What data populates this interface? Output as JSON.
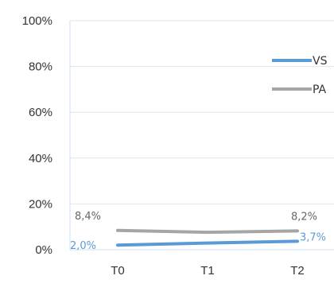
{
  "chart_data": {
    "type": "line",
    "categories": [
      "T0",
      "T1",
      "T2"
    ],
    "ylim": [
      0,
      100
    ],
    "y_ticks": [
      "0%",
      "20%",
      "40%",
      "60%",
      "80%",
      "100%"
    ],
    "grid": true,
    "legend_position": "right",
    "series": [
      {
        "name": "VS",
        "color": "#5b9bd5",
        "values": [
          2.0,
          2.9,
          3.7
        ],
        "labels": [
          "2,0%",
          "",
          "3,7%"
        ]
      },
      {
        "name": "PA",
        "color": "#a5a5a5",
        "values": [
          8.4,
          7.6,
          8.2
        ],
        "labels": [
          "8,4%",
          "",
          "8,2%"
        ]
      }
    ]
  }
}
